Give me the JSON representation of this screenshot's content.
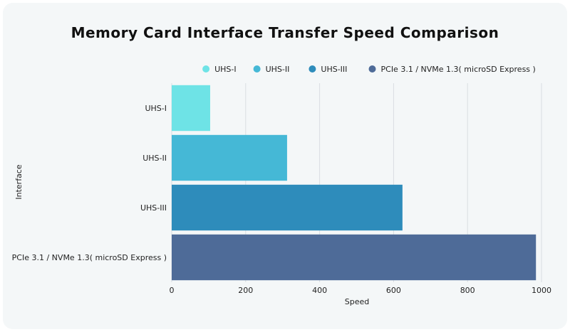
{
  "chart_data": {
    "type": "bar",
    "orientation": "horizontal",
    "title": "Memory Card Interface Transfer Speed Comparison",
    "xlabel": "Speed",
    "ylabel": "Interface",
    "categories": [
      "UHS-I",
      "UHS-II",
      "UHS-III",
      "PCIe 3.1 / NVMe 1.3( microSD Express )"
    ],
    "values": [
      104,
      312,
      624,
      985
    ],
    "colors": [
      "#6ee3e6",
      "#45b8d6",
      "#2e8cbb",
      "#4e6b98"
    ],
    "xlim": [
      0,
      1000
    ],
    "xticks": [
      "0",
      "200",
      "400",
      "600",
      "800",
      "1000"
    ],
    "legend": [
      "UHS-I",
      "UHS-II",
      "UHS-III",
      "PCIe 3.1 / NVMe 1.3( microSD Express )"
    ],
    "legend_position": "top",
    "grid": true
  }
}
